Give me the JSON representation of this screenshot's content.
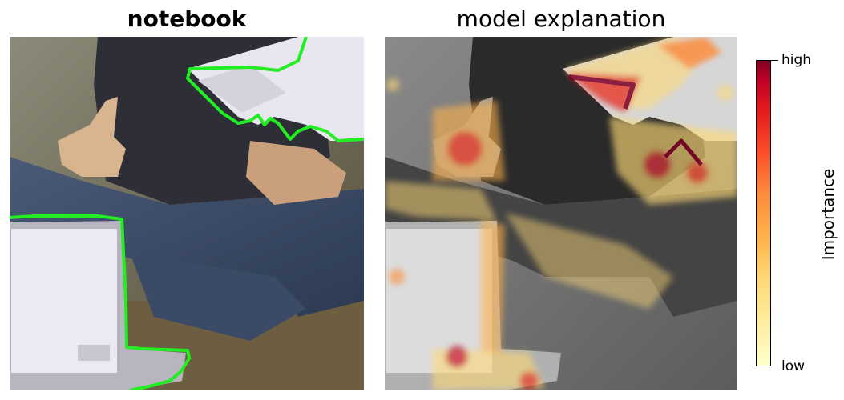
{
  "panels": {
    "left_title": "notebook",
    "right_title": "model explanation"
  },
  "colorbar": {
    "label": "Importance",
    "high_label": "high",
    "low_label": "low",
    "colormap": [
      "#ffffcc",
      "#fed976",
      "#feb24c",
      "#fd8d3c",
      "#fc4e2a",
      "#e31a1c",
      "#bd0026",
      "#800026"
    ]
  },
  "colors": {
    "segmentation_outline": "#22ee22"
  }
}
